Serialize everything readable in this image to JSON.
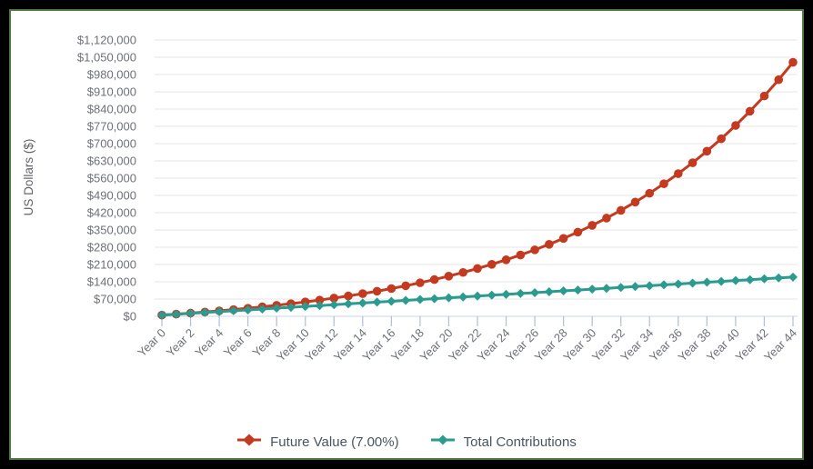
{
  "frame": {
    "outer_color": "#000000",
    "inner_border_color": "#4f7942",
    "background": "#ffffff"
  },
  "colors": {
    "grid_line": "#e6e6e6",
    "axis_line": "#ccd6eb",
    "tick_mark": "#b4c3da",
    "axis_label_text": "#6d7177",
    "axis_title_text": "#5f6368",
    "legend_text": "#4a5560",
    "future_value_series": "#c43a20",
    "total_contributions_series": "#2a9b8e"
  },
  "chart_data": {
    "type": "line",
    "title": "",
    "xlabel": "",
    "ylabel": "US Dollars ($)",
    "grid": true,
    "legend_position": "bottom",
    "ylim": [
      0,
      1120000
    ],
    "y_tick_step": 70000,
    "y_tick_labels": [
      "$0",
      "$70,000",
      "$140,000",
      "$210,000",
      "$280,000",
      "$350,000",
      "$420,000",
      "$490,000",
      "$560,000",
      "$630,000",
      "$700,000",
      "$770,000",
      "$840,000",
      "$910,000",
      "$980,000",
      "$1,050,000",
      "$1,120,000"
    ],
    "x_tick_step": 2,
    "categories": [
      "Year 0",
      "Year 1",
      "Year 2",
      "Year 3",
      "Year 4",
      "Year 5",
      "Year 6",
      "Year 7",
      "Year 8",
      "Year 9",
      "Year 10",
      "Year 11",
      "Year 12",
      "Year 13",
      "Year 14",
      "Year 15",
      "Year 16",
      "Year 17",
      "Year 18",
      "Year 19",
      "Year 20",
      "Year 21",
      "Year 22",
      "Year 23",
      "Year 24",
      "Year 25",
      "Year 26",
      "Year 27",
      "Year 28",
      "Year 29",
      "Year 30",
      "Year 31",
      "Year 32",
      "Year 33",
      "Year 34",
      "Year 35",
      "Year 36",
      "Year 37",
      "Year 38",
      "Year 39",
      "Year 40",
      "Year 41",
      "Year 42",
      "Year 43",
      "Year 44"
    ],
    "series": [
      {
        "name": "Future Value (7.00%)",
        "color": "#c43a20",
        "marker": "circle",
        "values": [
          5000,
          8850,
          12970,
          17377,
          22094,
          27140,
          32540,
          38318,
          44500,
          51115,
          58193,
          65767,
          73871,
          82541,
          91819,
          101747,
          112369,
          123735,
          135896,
          148909,
          162833,
          177731,
          193672,
          210729,
          228980,
          248509,
          269404,
          291763,
          315686,
          341284,
          368674,
          397981,
          429340,
          462894,
          498796,
          537212,
          578317,
          622299,
          669360,
          719715,
          773595,
          831247,
          892934,
          958939,
          1029565
        ]
      },
      {
        "name": "Total Contributions",
        "color": "#2a9b8e",
        "marker": "diamond",
        "values": [
          5000,
          8500,
          12000,
          15500,
          19000,
          22500,
          26000,
          29500,
          33000,
          36500,
          40000,
          43500,
          47000,
          50500,
          54000,
          57500,
          61000,
          64500,
          68000,
          71500,
          75000,
          78500,
          82000,
          85500,
          89000,
          92500,
          96000,
          99500,
          103000,
          106500,
          110000,
          113500,
          117000,
          120500,
          124000,
          127500,
          131000,
          134500,
          138000,
          141500,
          145000,
          148500,
          152000,
          155500,
          159000
        ]
      }
    ]
  }
}
